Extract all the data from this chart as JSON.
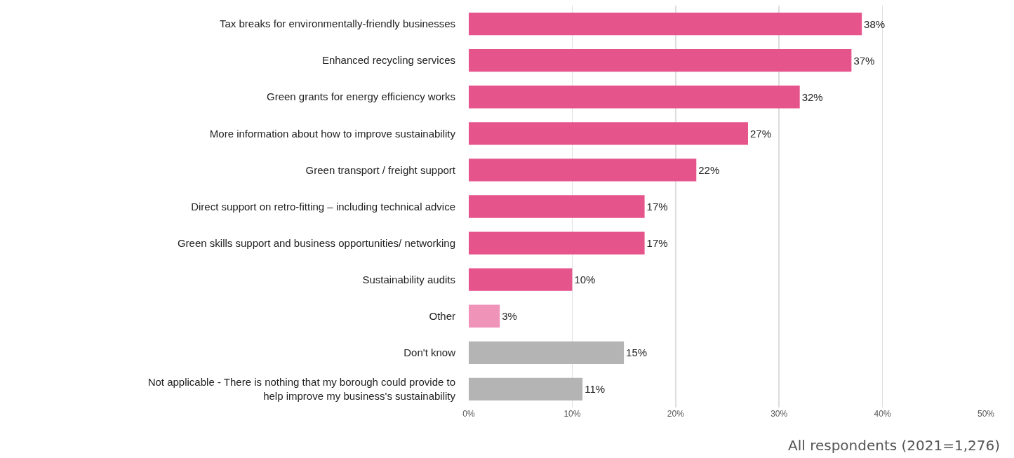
{
  "chart_data": {
    "type": "bar",
    "orientation": "horizontal",
    "categories": [
      "Tax breaks for environmentally-friendly businesses",
      "Enhanced recycling services",
      "Green grants for energy efficiency works",
      "More information about how to improve sustainability",
      "Green transport / freight support",
      "Direct support on retro-fitting – including technical advice",
      "Green skills support and business opportunities/ networking",
      "Sustainability audits",
      "Other",
      "Don't know",
      "Not applicable - There is nothing that my borough could provide to help improve my business's sustainability"
    ],
    "values": [
      38,
      37,
      32,
      27,
      22,
      17,
      17,
      10,
      3,
      15,
      11
    ],
    "colors": [
      "#e6548c",
      "#e6548c",
      "#e6548c",
      "#e6548c",
      "#e6548c",
      "#e6548c",
      "#e6548c",
      "#e6548c",
      "#ef93b8",
      "#b4b4b4",
      "#b4b4b4"
    ],
    "value_labels": [
      "38%",
      "37%",
      "32%",
      "27%",
      "22%",
      "17%",
      "17%",
      "10%",
      "3%",
      "15%",
      "11%"
    ],
    "xlim": [
      0,
      50
    ],
    "xticks": [
      {
        "value": 0,
        "label": "0%"
      },
      {
        "value": 10,
        "label": "10%"
      },
      {
        "value": 20,
        "label": "20%"
      },
      {
        "value": 30,
        "label": "30%"
      },
      {
        "value": 40,
        "label": "40%"
      },
      {
        "value": 50,
        "label": "50%"
      }
    ],
    "grid": "x",
    "annotations": [
      "All respondents (2021=1,276)"
    ]
  }
}
